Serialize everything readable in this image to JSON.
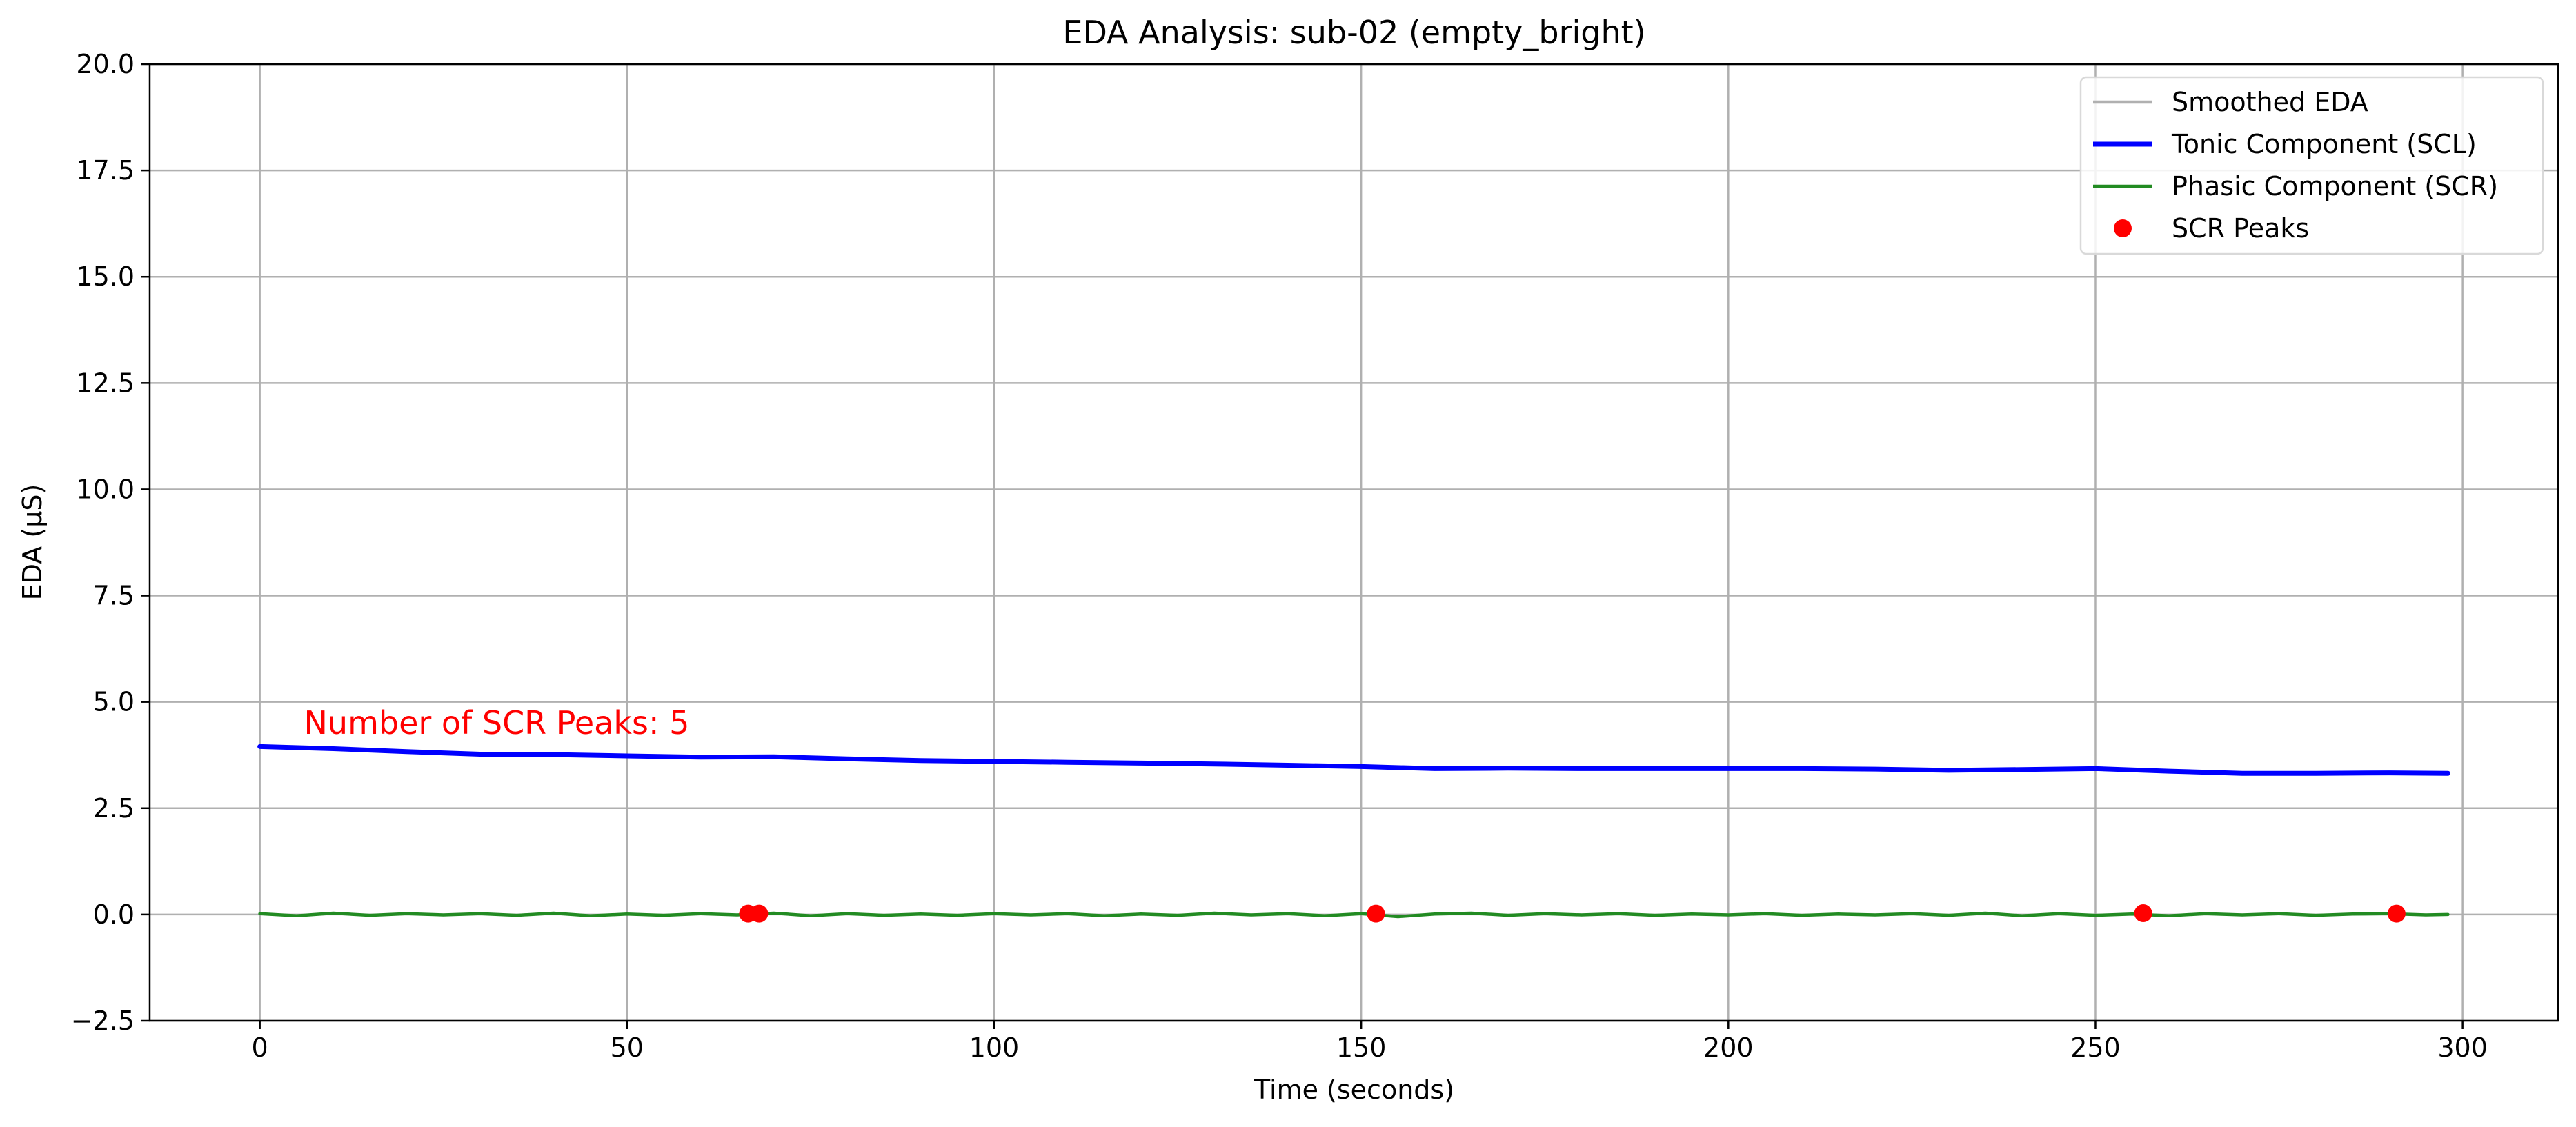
{
  "chart_data": {
    "type": "line",
    "title": "EDA Analysis: sub-02 (empty_bright)",
    "xlabel": "Time (seconds)",
    "ylabel": "EDA (µS)",
    "xlim": [
      -15,
      313
    ],
    "ylim": [
      -2.5,
      20
    ],
    "xticks": [
      0,
      50,
      100,
      150,
      200,
      250,
      300
    ],
    "xtick_labels": [
      "0",
      "50",
      "100",
      "150",
      "200",
      "250",
      "300"
    ],
    "yticks": [
      -2.5,
      0,
      2.5,
      5,
      7.5,
      10,
      12.5,
      15,
      17.5,
      20
    ],
    "ytick_labels": [
      "−2.5",
      "0.0",
      "2.5",
      "5.0",
      "7.5",
      "10.0",
      "12.5",
      "15.0",
      "17.5",
      "20.0"
    ],
    "grid": true,
    "legend_position": "top-right",
    "series": [
      {
        "name": "Smoothed EDA",
        "kind": "line",
        "color": "#b0b0b0",
        "x": [],
        "y": []
      },
      {
        "name": "Tonic Component (SCL)",
        "kind": "line",
        "color": "#0000ff",
        "x": [
          0,
          10,
          20,
          30,
          40,
          50,
          60,
          70,
          80,
          90,
          100,
          110,
          120,
          130,
          140,
          150,
          160,
          170,
          180,
          190,
          200,
          210,
          220,
          230,
          240,
          250,
          260,
          270,
          280,
          290,
          298
        ],
        "y": [
          3.95,
          3.9,
          3.83,
          3.77,
          3.76,
          3.73,
          3.7,
          3.71,
          3.66,
          3.62,
          3.6,
          3.58,
          3.56,
          3.54,
          3.51,
          3.48,
          3.43,
          3.44,
          3.43,
          3.43,
          3.43,
          3.43,
          3.42,
          3.39,
          3.41,
          3.43,
          3.37,
          3.32,
          3.32,
          3.33,
          3.32
        ]
      },
      {
        "name": "Phasic Component (SCR)",
        "kind": "line",
        "color": "#228b22",
        "x": [
          0,
          5,
          10,
          15,
          20,
          25,
          30,
          35,
          40,
          45,
          50,
          55,
          60,
          65,
          70,
          75,
          80,
          85,
          90,
          95,
          100,
          105,
          110,
          115,
          120,
          125,
          130,
          135,
          140,
          145,
          150,
          155,
          160,
          165,
          170,
          175,
          180,
          185,
          190,
          195,
          200,
          205,
          210,
          215,
          220,
          225,
          230,
          235,
          240,
          245,
          250,
          255,
          260,
          265,
          270,
          275,
          280,
          285,
          290,
          295,
          298
        ],
        "y": [
          0.02,
          -0.03,
          0.03,
          -0.02,
          0.02,
          -0.01,
          0.02,
          -0.02,
          0.03,
          -0.03,
          0.01,
          -0.02,
          0.02,
          -0.01,
          0.03,
          -0.03,
          0.02,
          -0.02,
          0.01,
          -0.02,
          0.02,
          -0.01,
          0.02,
          -0.03,
          0.01,
          -0.02,
          0.03,
          -0.01,
          0.02,
          -0.03,
          0.02,
          -0.05,
          0.01,
          0.03,
          -0.02,
          0.02,
          -0.01,
          0.02,
          -0.02,
          0.01,
          -0.01,
          0.02,
          -0.02,
          0.01,
          -0.01,
          0.02,
          -0.02,
          0.03,
          -0.03,
          0.02,
          -0.02,
          0.01,
          -0.03,
          0.02,
          -0.01,
          0.02,
          -0.02,
          0.01,
          0.02,
          -0.01,
          0.0
        ]
      },
      {
        "name": "SCR Peaks",
        "kind": "scatter",
        "color": "#ff0000",
        "x": [
          66.5,
          68,
          152,
          256.5,
          291
        ],
        "y": [
          0.02,
          0.02,
          0.02,
          0.03,
          0.02
        ]
      }
    ],
    "annotation": {
      "text": "Number of SCR Peaks: 5",
      "x": 6,
      "y": 4.25,
      "color": "#ff0000"
    }
  }
}
